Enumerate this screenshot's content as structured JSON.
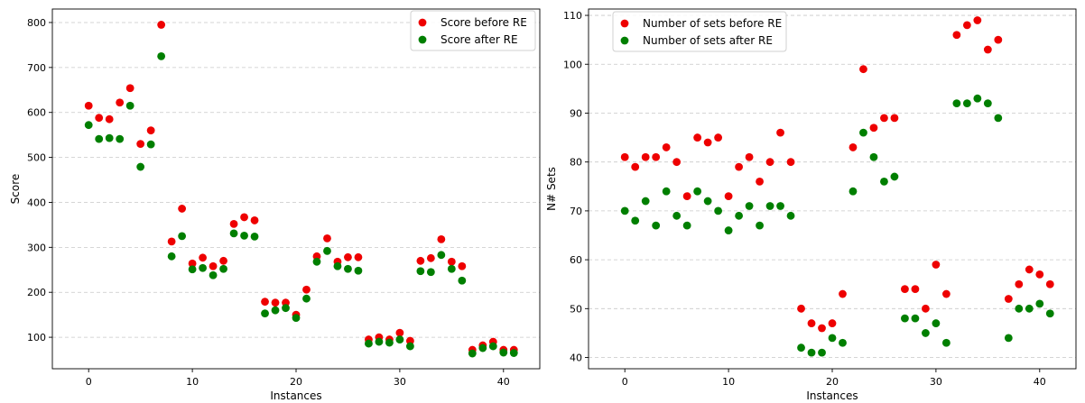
{
  "chart_data": [
    {
      "type": "scatter",
      "xlabel": "Instances",
      "ylabel": "Score",
      "xlim": [
        -3.5,
        43.5
      ],
      "ylim": [
        30,
        830
      ],
      "xticks": [
        0,
        10,
        20,
        30,
        40
      ],
      "yticks": [
        100,
        200,
        300,
        400,
        500,
        600,
        700,
        800
      ],
      "grid": "y-dashed",
      "legend": "top-right",
      "x": [
        0,
        1,
        2,
        3,
        4,
        5,
        6,
        7,
        8,
        9,
        10,
        11,
        12,
        13,
        14,
        15,
        16,
        17,
        18,
        19,
        20,
        21,
        22,
        23,
        24,
        25,
        26,
        27,
        28,
        29,
        30,
        31,
        32,
        33,
        34,
        35,
        36,
        37,
        38,
        39,
        40,
        41
      ],
      "series": [
        {
          "name": "Score before RE",
          "color": "#ee0000",
          "values": [
            615,
            588,
            585,
            622,
            654,
            530,
            560,
            795,
            313,
            386,
            264,
            277,
            258,
            270,
            352,
            367,
            360,
            179,
            177,
            177,
            150,
            206,
            280,
            320,
            268,
            278,
            278,
            95,
            100,
            95,
            110,
            92,
            270,
            276,
            318,
            268,
            258,
            72,
            82,
            90,
            72,
            72
          ]
        },
        {
          "name": "Score after RE",
          "color": "#007f00",
          "values": [
            572,
            541,
            543,
            541,
            615,
            479,
            529,
            725,
            280,
            325,
            251,
            254,
            238,
            252,
            331,
            326,
            324,
            153,
            160,
            165,
            143,
            186,
            268,
            292,
            258,
            252,
            248,
            86,
            90,
            88,
            95,
            80,
            247,
            245,
            283,
            252,
            226,
            64,
            76,
            80,
            66,
            65
          ]
        }
      ]
    },
    {
      "type": "scatter",
      "xlabel": "Instances",
      "ylabel": "N# Sets",
      "xlim": [
        -3.5,
        43.5
      ],
      "ylim": [
        37.7,
        111.3
      ],
      "xticks": [
        0,
        10,
        20,
        30,
        40
      ],
      "yticks": [
        40,
        50,
        60,
        70,
        80,
        90,
        100,
        110
      ],
      "grid": "y-dashed",
      "legend": "top-left",
      "x": [
        0,
        1,
        2,
        3,
        4,
        5,
        6,
        7,
        8,
        9,
        10,
        11,
        12,
        13,
        14,
        15,
        16,
        17,
        18,
        19,
        20,
        21,
        22,
        23,
        24,
        25,
        26,
        27,
        28,
        29,
        30,
        31,
        32,
        33,
        34,
        35,
        36,
        37,
        38,
        39,
        40,
        41
      ],
      "series": [
        {
          "name": "Number of sets before RE",
          "color": "#ee0000",
          "values": [
            81,
            79,
            81,
            81,
            83,
            80,
            73,
            85,
            84,
            85,
            73,
            79,
            81,
            76,
            80,
            86,
            80,
            50,
            47,
            46,
            47,
            53,
            83,
            99,
            87,
            89,
            89,
            54,
            54,
            50,
            59,
            53,
            106,
            108,
            109,
            103,
            105,
            52,
            55,
            58,
            57,
            55
          ]
        },
        {
          "name": "Number of sets after RE",
          "color": "#007f00",
          "values": [
            70,
            68,
            72,
            67,
            74,
            69,
            67,
            74,
            72,
            70,
            66,
            69,
            71,
            67,
            71,
            71,
            69,
            42,
            41,
            41,
            44,
            43,
            74,
            86,
            81,
            76,
            77,
            48,
            48,
            45,
            47,
            43,
            92,
            92,
            93,
            92,
            89,
            44,
            50,
            50,
            51,
            49
          ]
        }
      ]
    }
  ]
}
